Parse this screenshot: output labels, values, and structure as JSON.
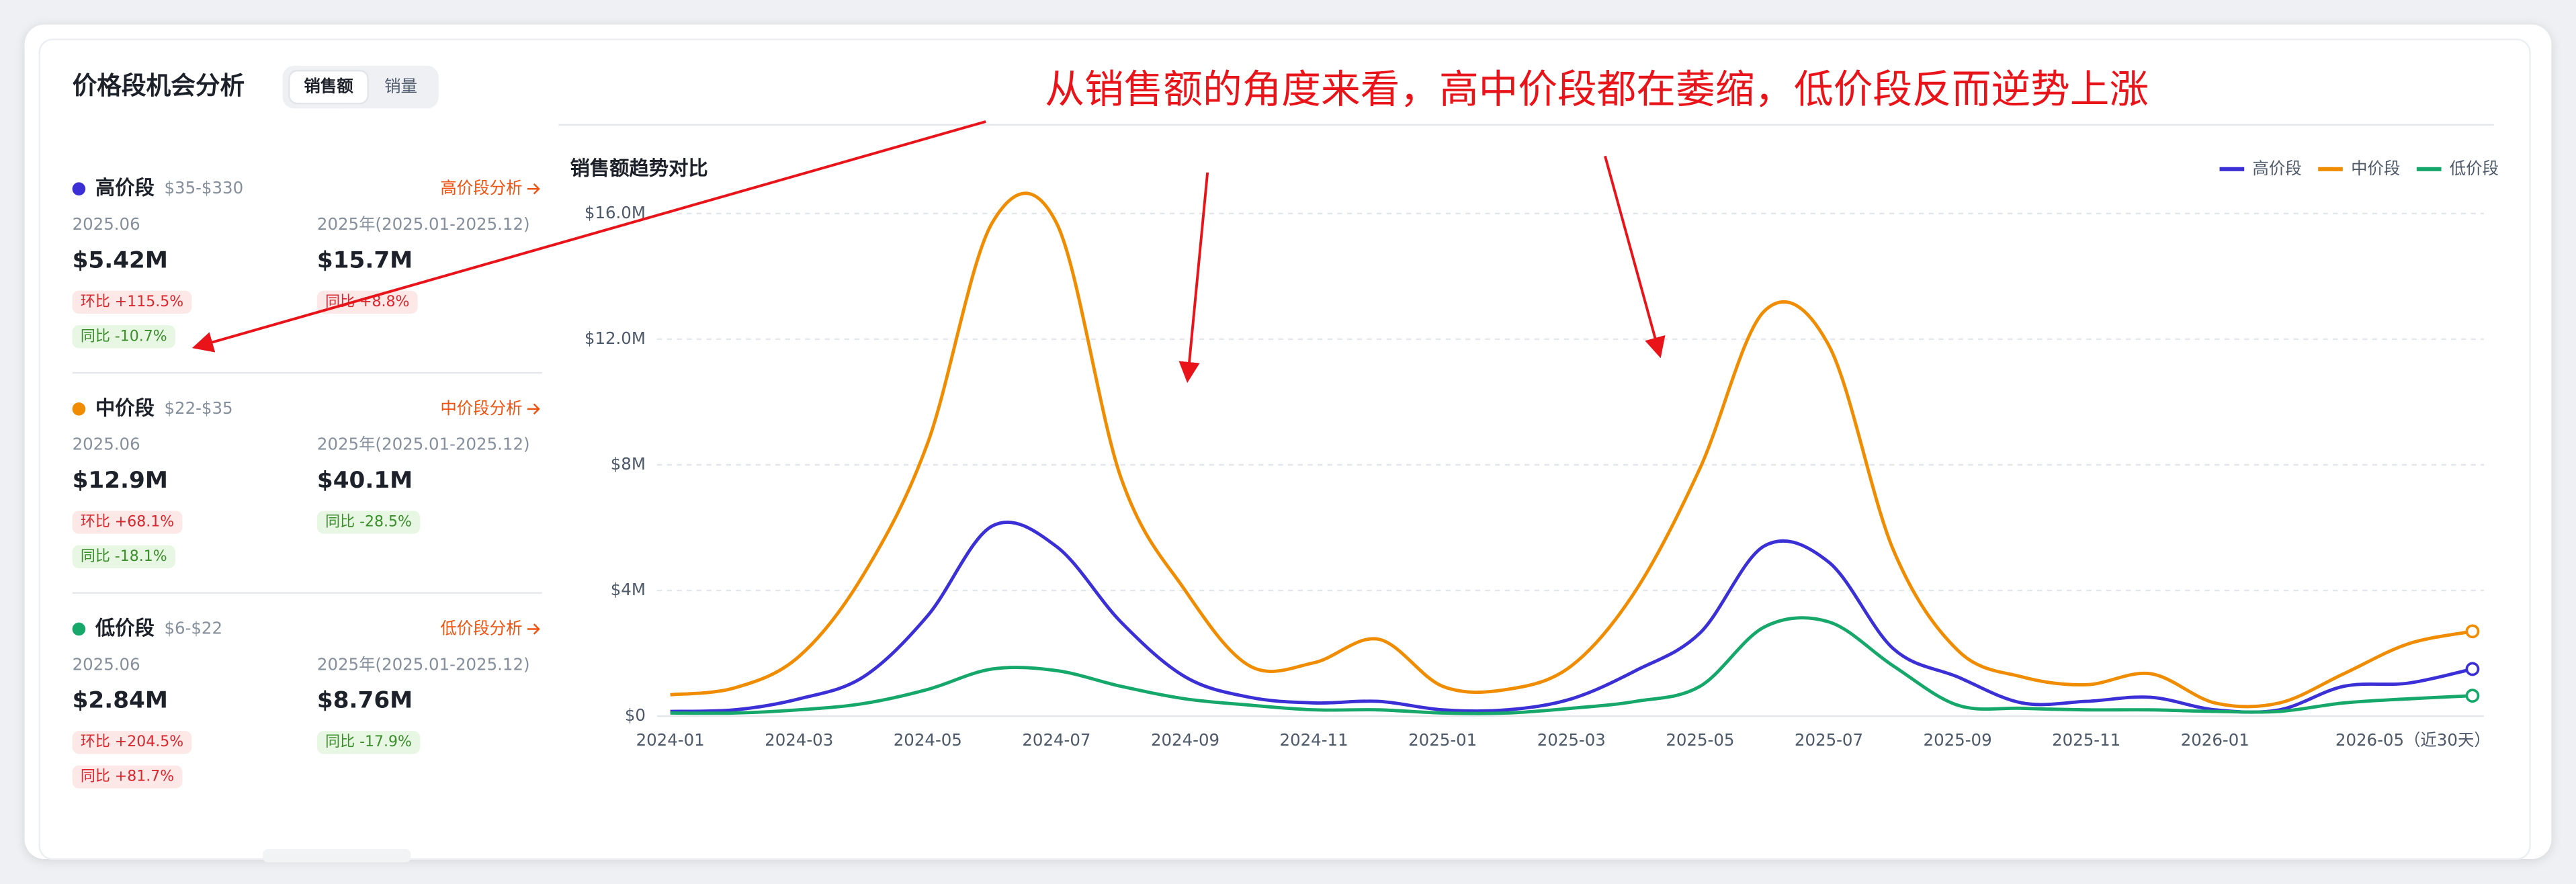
{
  "title": "价格段机会分析",
  "tabs": [
    "销售额",
    "销量"
  ],
  "annotation": "从销售额的角度来看，高中价段都在萎缩，低价段反而逆势上涨",
  "segments": [
    {
      "name": "高价段",
      "range": "$35-$330",
      "link": "高价段分析",
      "month_label": "2025.06",
      "month_value": "$5.42M",
      "year_label": "2025年(2025.01-2025.12)",
      "year_value": "$15.7M",
      "month_badges": [
        "环比 +115.5%",
        "同比 -10.7%"
      ],
      "year_badges": [
        "同比 +8.8%"
      ]
    },
    {
      "name": "中价段",
      "range": "$22-$35",
      "link": "中价段分析",
      "month_label": "2025.06",
      "month_value": "$12.9M",
      "year_label": "2025年(2025.01-2025.12)",
      "year_value": "$40.1M",
      "month_badges": [
        "环比 +68.1%",
        "同比 -18.1%"
      ],
      "year_badges": [
        "同比 -28.5%"
      ]
    },
    {
      "name": "低价段",
      "range": "$6-$22",
      "link": "低价段分析",
      "month_label": "2025.06",
      "month_value": "$2.84M",
      "year_label": "2025年(2025.01-2025.12)",
      "year_value": "$8.76M",
      "month_badges": [
        "环比 +204.5%",
        "同比 +81.7%"
      ],
      "year_badges": [
        "同比 -17.9%"
      ]
    }
  ],
  "chart_data": {
    "type": "line",
    "title": "销售额趋势对比",
    "categories": [
      "2024-01",
      null,
      "2024-03",
      null,
      "2024-05",
      null,
      "2024-07",
      null,
      "2024-09",
      null,
      "2024-11",
      null,
      "2025-01",
      null,
      "2025-03",
      null,
      "2025-05",
      null,
      "2025-07",
      null,
      "2025-09",
      null,
      "2025-11",
      null,
      "2026-01",
      null,
      null,
      null,
      "2026-05（近30天）"
    ],
    "series": [
      {
        "name": "高价段",
        "color": "#3b2fd6",
        "values": [
          150000,
          200000,
          550000,
          1250000,
          3200000,
          6050000,
          5400000,
          3000000,
          1250000,
          600000,
          420000,
          470000,
          200000,
          200000,
          550000,
          1450000,
          2650000,
          5420000,
          4900000,
          2150000,
          1250000,
          420000,
          470000,
          600000,
          200000,
          200000,
          950000,
          1050000,
          1500000
        ]
      },
      {
        "name": "中价段",
        "color": "#f08c00",
        "values": [
          680000,
          900000,
          1900000,
          4500000,
          8700000,
          15700000,
          15700000,
          7600000,
          4000000,
          1600000,
          1700000,
          2450000,
          950000,
          850000,
          1600000,
          4000000,
          7900000,
          12900000,
          11800000,
          5300000,
          2100000,
          1250000,
          1000000,
          1350000,
          420000,
          420000,
          1350000,
          2300000,
          2700000
        ]
      },
      {
        "name": "低价段",
        "color": "#16a86a",
        "values": [
          100000,
          100000,
          200000,
          400000,
          850000,
          1500000,
          1450000,
          950000,
          550000,
          350000,
          200000,
          200000,
          100000,
          100000,
          250000,
          470000,
          950000,
          2840000,
          3000000,
          1600000,
          350000,
          250000,
          200000,
          200000,
          150000,
          150000,
          420000,
          550000,
          650000
        ]
      }
    ],
    "ylim": [
      0,
      16000000
    ],
    "yticks": [
      {
        "value": 0,
        "label": "$0"
      },
      {
        "value": 4000000,
        "label": "$4M"
      },
      {
        "value": 8000000,
        "label": "$8M"
      },
      {
        "value": 12000000,
        "label": "$12.0M"
      },
      {
        "value": 16000000,
        "label": "$16.0M"
      }
    ],
    "grid": true,
    "legend": "top-right"
  }
}
